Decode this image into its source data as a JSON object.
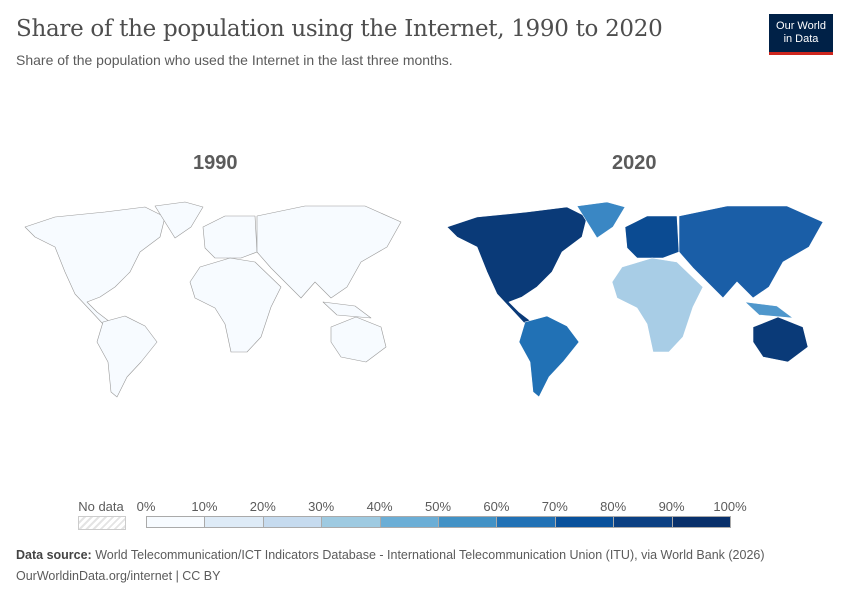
{
  "header": {
    "title": "Share of the population using the Internet, 1990 to 2020",
    "subtitle": "Share of the population who used the Internet in the last three months.",
    "logo": [
      "Our World",
      "in Data"
    ]
  },
  "maps": [
    {
      "year": "1990",
      "fills": {
        "north_america": "#f7fbff",
        "greenland": "#f7fbff",
        "south_america": "#f7fbff",
        "europe": "#f7fbff",
        "africa": "#f7fbff",
        "asia": "#f7fbff",
        "southeast_asia": "#f7fbff",
        "australia": "#f7fbff"
      }
    },
    {
      "year": "2020",
      "fills": {
        "north_america": "#0a3a78",
        "greenland": "#3a87c4",
        "south_america": "#2171b5",
        "europe": "#0b4b92",
        "africa": "#a8cde6",
        "asia": "#1a5ea7",
        "southeast_asia": "#4f97cc",
        "australia": "#0a3a78"
      }
    }
  ],
  "legend": {
    "no_data": "No data",
    "labels": [
      "0%",
      "10%",
      "20%",
      "30%",
      "40%",
      "50%",
      "60%",
      "70%",
      "80%",
      "90%",
      "100%"
    ],
    "colors": [
      "#f7fbff",
      "#deebf7",
      "#c6dbef",
      "#9ecae1",
      "#6baed6",
      "#4292c6",
      "#2171b5",
      "#08519c",
      "#0b4083",
      "#08306b"
    ]
  },
  "footer": {
    "source_label": "Data source:",
    "source": "World Telecommunication/ICT Indicators Database - International Telecommunication Union (ITU), via World Bank (2026)",
    "url": "OurWorldinData.org/internet | CC BY"
  }
}
